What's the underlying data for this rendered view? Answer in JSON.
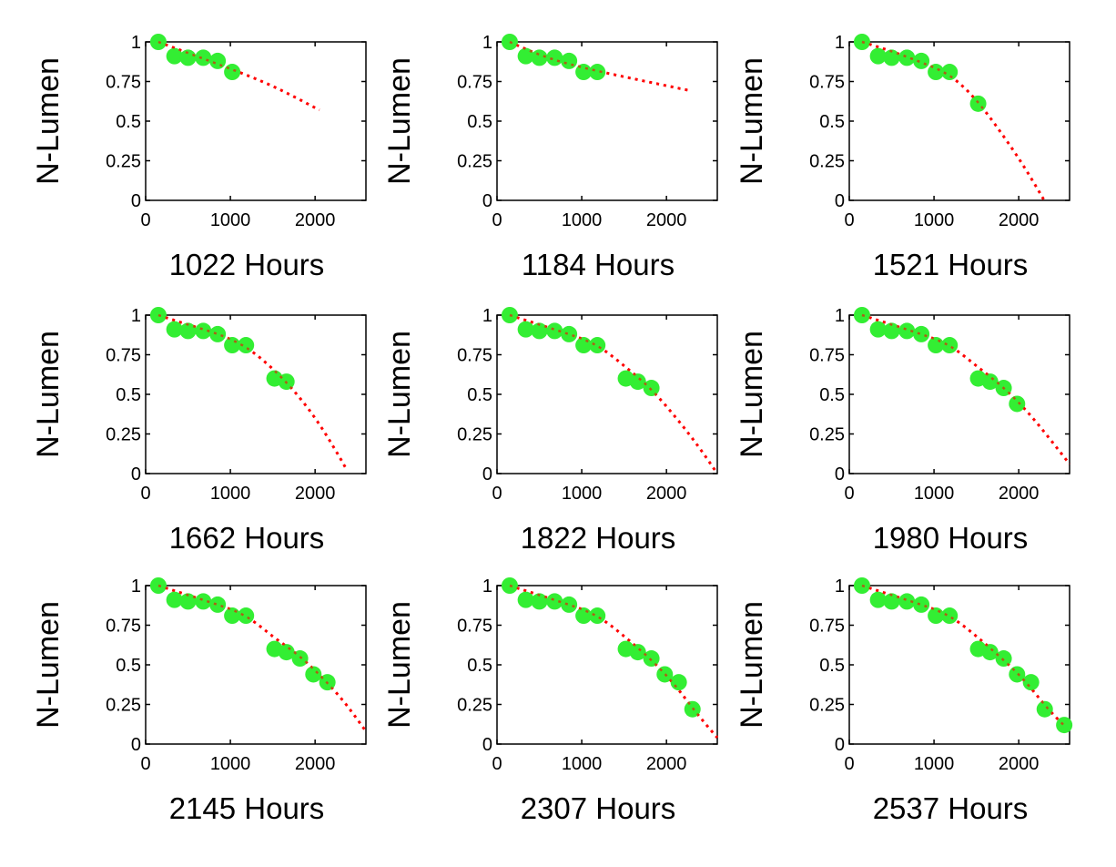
{
  "chart_data": [
    {
      "type": "scatter",
      "xlabel": "1022 Hours",
      "ylabel": "N-Lumen",
      "xlim": [
        0,
        2600
      ],
      "ylim": [
        0,
        1
      ],
      "xticks": [
        "0",
        "1000",
        "2000"
      ],
      "yticks": [
        "0",
        "0.25",
        "0.5",
        "0.75",
        "1"
      ],
      "grid": false,
      "series": [
        {
          "kind": "measured",
          "color": "#33ee33",
          "x": [
            150,
            340,
            500,
            680,
            850,
            1022
          ],
          "y": [
            1.0,
            0.91,
            0.9,
            0.9,
            0.88,
            0.81
          ]
        },
        {
          "kind": "fit",
          "color": "#ff0000",
          "x": [
            150,
            500,
            1000,
            1500,
            2050
          ],
          "y": [
            1.0,
            0.93,
            0.83,
            0.72,
            0.57
          ]
        }
      ]
    },
    {
      "type": "scatter",
      "xlabel": "1184 Hours",
      "ylabel": "N-Lumen",
      "xlim": [
        0,
        2600
      ],
      "ylim": [
        0,
        1
      ],
      "xticks": [
        "0",
        "1000",
        "2000"
      ],
      "yticks": [
        "0",
        "0.25",
        "0.5",
        "0.75",
        "1"
      ],
      "grid": false,
      "series": [
        {
          "kind": "measured",
          "color": "#33ee33",
          "x": [
            150,
            340,
            500,
            680,
            850,
            1022,
            1184
          ],
          "y": [
            1.0,
            0.91,
            0.9,
            0.9,
            0.88,
            0.81,
            0.81
          ]
        },
        {
          "kind": "fit",
          "color": "#ff0000",
          "x": [
            150,
            500,
            1000,
            1500,
            2300
          ],
          "y": [
            1.0,
            0.92,
            0.84,
            0.78,
            0.69
          ]
        }
      ]
    },
    {
      "type": "scatter",
      "xlabel": "1521 Hours",
      "ylabel": "N-Lumen",
      "xlim": [
        0,
        2600
      ],
      "ylim": [
        0,
        1
      ],
      "xticks": [
        "0",
        "1000",
        "2000"
      ],
      "yticks": [
        "0",
        "0.25",
        "0.5",
        "0.75",
        "1"
      ],
      "grid": false,
      "series": [
        {
          "kind": "measured",
          "color": "#33ee33",
          "x": [
            150,
            340,
            500,
            680,
            850,
            1022,
            1184,
            1521
          ],
          "y": [
            1.0,
            0.91,
            0.9,
            0.9,
            0.88,
            0.81,
            0.81,
            0.61
          ]
        },
        {
          "kind": "fit",
          "color": "#ff0000",
          "x": [
            150,
            500,
            900,
            1200,
            1500,
            1800,
            2100,
            2300
          ],
          "y": [
            1.0,
            0.94,
            0.86,
            0.78,
            0.63,
            0.42,
            0.18,
            0.0
          ]
        }
      ]
    },
    {
      "type": "scatter",
      "xlabel": "1662 Hours",
      "ylabel": "N-Lumen",
      "xlim": [
        0,
        2600
      ],
      "ylim": [
        0,
        1
      ],
      "xticks": [
        "0",
        "1000",
        "2000"
      ],
      "yticks": [
        "0",
        "0.25",
        "0.5",
        "0.75",
        "1"
      ],
      "grid": false,
      "series": [
        {
          "kind": "measured",
          "color": "#33ee33",
          "x": [
            150,
            340,
            500,
            680,
            850,
            1022,
            1184,
            1521,
            1662
          ],
          "y": [
            1.0,
            0.91,
            0.9,
            0.9,
            0.88,
            0.81,
            0.81,
            0.6,
            0.58
          ]
        },
        {
          "kind": "fit",
          "color": "#ff0000",
          "x": [
            150,
            500,
            900,
            1200,
            1500,
            1800,
            2100,
            2400
          ],
          "y": [
            1.0,
            0.94,
            0.87,
            0.79,
            0.66,
            0.49,
            0.27,
            0.0
          ]
        }
      ]
    },
    {
      "type": "scatter",
      "xlabel": "1822 Hours",
      "ylabel": "N-Lumen",
      "xlim": [
        0,
        2600
      ],
      "ylim": [
        0,
        1
      ],
      "xticks": [
        "0",
        "1000",
        "2000"
      ],
      "yticks": [
        "0",
        "0.25",
        "0.5",
        "0.75",
        "1"
      ],
      "grid": false,
      "series": [
        {
          "kind": "measured",
          "color": "#33ee33",
          "x": [
            150,
            340,
            500,
            680,
            850,
            1022,
            1184,
            1521,
            1662,
            1822
          ],
          "y": [
            1.0,
            0.91,
            0.9,
            0.9,
            0.88,
            0.81,
            0.81,
            0.6,
            0.58,
            0.54
          ]
        },
        {
          "kind": "fit",
          "color": "#ff0000",
          "x": [
            150,
            500,
            900,
            1200,
            1500,
            1800,
            2100,
            2350,
            2600
          ],
          "y": [
            1.0,
            0.94,
            0.87,
            0.8,
            0.68,
            0.54,
            0.36,
            0.19,
            0.0
          ]
        }
      ]
    },
    {
      "type": "scatter",
      "xlabel": "1980 Hours",
      "ylabel": "N-Lumen",
      "xlim": [
        0,
        2600
      ],
      "ylim": [
        0,
        1
      ],
      "xticks": [
        "0",
        "1000",
        "2000"
      ],
      "yticks": [
        "0",
        "0.25",
        "0.5",
        "0.75",
        "1"
      ],
      "grid": false,
      "series": [
        {
          "kind": "measured",
          "color": "#33ee33",
          "x": [
            150,
            340,
            500,
            680,
            850,
            1022,
            1184,
            1521,
            1662,
            1822,
            1980
          ],
          "y": [
            1.0,
            0.91,
            0.9,
            0.9,
            0.88,
            0.81,
            0.81,
            0.6,
            0.58,
            0.54,
            0.44
          ]
        },
        {
          "kind": "fit",
          "color": "#ff0000",
          "x": [
            150,
            500,
            900,
            1200,
            1500,
            1800,
            2100,
            2350,
            2600
          ],
          "y": [
            1.0,
            0.94,
            0.87,
            0.8,
            0.68,
            0.55,
            0.39,
            0.23,
            0.06
          ]
        }
      ]
    },
    {
      "type": "scatter",
      "xlabel": "2145 Hours",
      "ylabel": "N-Lumen",
      "xlim": [
        0,
        2600
      ],
      "ylim": [
        0,
        1
      ],
      "xticks": [
        "0",
        "1000",
        "2000"
      ],
      "yticks": [
        "0",
        "0.25",
        "0.5",
        "0.75",
        "1"
      ],
      "grid": false,
      "series": [
        {
          "kind": "measured",
          "color": "#33ee33",
          "x": [
            150,
            340,
            500,
            680,
            850,
            1022,
            1184,
            1521,
            1662,
            1822,
            1980,
            2145
          ],
          "y": [
            1.0,
            0.91,
            0.9,
            0.9,
            0.88,
            0.81,
            0.81,
            0.6,
            0.58,
            0.54,
            0.44,
            0.39
          ]
        },
        {
          "kind": "fit",
          "color": "#ff0000",
          "x": [
            150,
            500,
            900,
            1200,
            1500,
            1800,
            2100,
            2350,
            2600
          ],
          "y": [
            1.0,
            0.94,
            0.87,
            0.8,
            0.68,
            0.56,
            0.41,
            0.26,
            0.08
          ]
        }
      ]
    },
    {
      "type": "scatter",
      "xlabel": "2307 Hours",
      "ylabel": "N-Lumen",
      "xlim": [
        0,
        2600
      ],
      "ylim": [
        0,
        1
      ],
      "xticks": [
        "0",
        "1000",
        "2000"
      ],
      "yticks": [
        "0",
        "0.25",
        "0.5",
        "0.75",
        "1"
      ],
      "grid": false,
      "series": [
        {
          "kind": "measured",
          "color": "#33ee33",
          "x": [
            150,
            340,
            500,
            680,
            850,
            1022,
            1184,
            1521,
            1662,
            1822,
            1980,
            2145,
            2307
          ],
          "y": [
            1.0,
            0.91,
            0.9,
            0.9,
            0.88,
            0.81,
            0.81,
            0.6,
            0.58,
            0.54,
            0.44,
            0.39,
            0.22
          ]
        },
        {
          "kind": "fit",
          "color": "#ff0000",
          "x": [
            150,
            500,
            900,
            1200,
            1500,
            1800,
            2100,
            2350,
            2600
          ],
          "y": [
            1.0,
            0.94,
            0.87,
            0.8,
            0.68,
            0.54,
            0.37,
            0.2,
            0.04
          ]
        }
      ]
    },
    {
      "type": "scatter",
      "xlabel": "2537 Hours",
      "ylabel": "N-Lumen",
      "xlim": [
        0,
        2600
      ],
      "ylim": [
        0,
        1
      ],
      "xticks": [
        "0",
        "1000",
        "2000"
      ],
      "yticks": [
        "0",
        "0.25",
        "0.5",
        "0.75",
        "1"
      ],
      "grid": false,
      "series": [
        {
          "kind": "measured",
          "color": "#33ee33",
          "x": [
            150,
            340,
            500,
            680,
            850,
            1022,
            1184,
            1521,
            1662,
            1822,
            1980,
            2145,
            2307,
            2537
          ],
          "y": [
            1.0,
            0.91,
            0.9,
            0.9,
            0.88,
            0.81,
            0.81,
            0.6,
            0.58,
            0.54,
            0.44,
            0.39,
            0.22,
            0.12
          ]
        },
        {
          "kind": "fit",
          "color": "#ff0000",
          "x": [
            150,
            500,
            900,
            1200,
            1500,
            1800,
            2100,
            2350,
            2550
          ],
          "y": [
            1.0,
            0.94,
            0.87,
            0.8,
            0.68,
            0.54,
            0.38,
            0.22,
            0.11
          ]
        }
      ]
    }
  ]
}
